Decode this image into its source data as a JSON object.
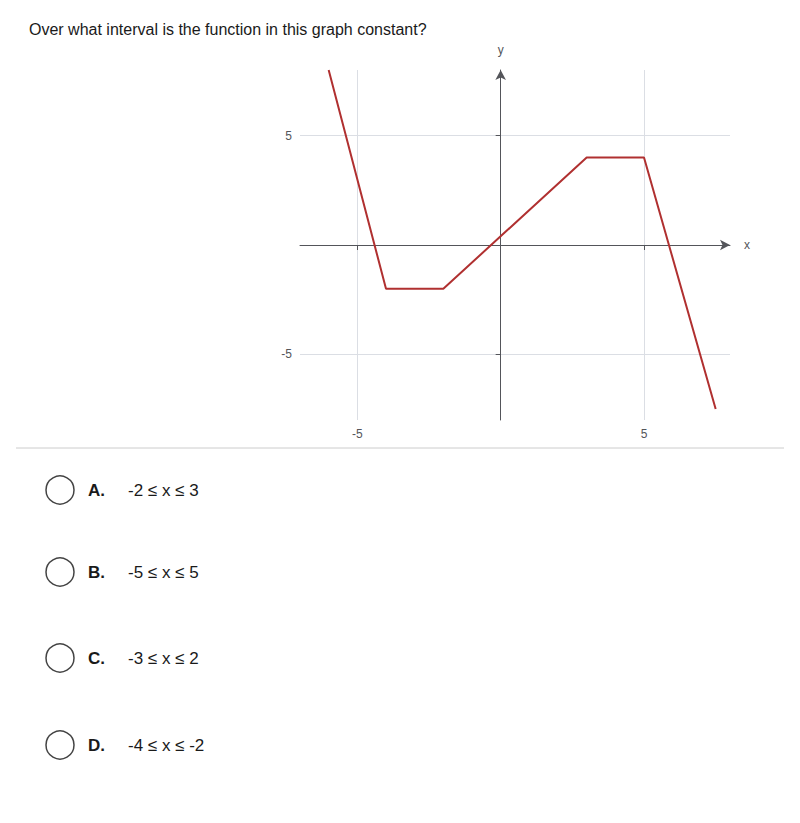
{
  "chart_data": {
    "type": "line",
    "title": "Over what interval is the function in this graph constant?​",
    "x_label": "x",
    "y_label": "y",
    "x": [
      -6,
      -4,
      -2,
      3,
      5,
      7.5
    ],
    "values": [
      8,
      -2,
      -2,
      4,
      4,
      -7.5
    ],
    "color": "#b03030",
    "xlim": [
      -7,
      8
    ],
    "ylim": [
      -8,
      8
    ],
    "xticks": [
      -5,
      5
    ],
    "yticks": [
      -5,
      5
    ],
    "grid": true,
    "annotations": [
      {
        "label": "A.",
        "text": "-2 ≤ x ≤ 3"
      },
      {
        "label": "B.",
        "text": "-5 ≤ x ≤ 5"
      },
      {
        "label": "C.",
        "text": "-3 ≤ x ≤ 2"
      },
      {
        "label": "D.",
        "text": "-4 ≤ x ≤ -2"
      }
    ]
  }
}
